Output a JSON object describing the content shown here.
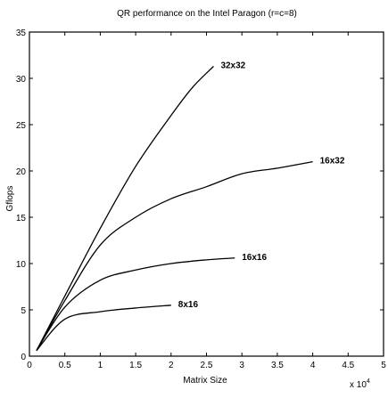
{
  "chart_data": {
    "type": "line",
    "title": "QR performance on the Intel Paragon (r=c=8)",
    "xlabel": "Matrix Size",
    "ylabel": "Gflops",
    "x_exponent_label": "x 10",
    "x_exponent_power": "4",
    "xlim": [
      0,
      5
    ],
    "ylim": [
      0,
      35
    ],
    "x_ticks": [
      "0",
      "0.5",
      "1",
      "1.5",
      "2",
      "2.5",
      "3",
      "3.5",
      "4",
      "4.5",
      "5"
    ],
    "y_ticks": [
      "0",
      "5",
      "10",
      "15",
      "20",
      "25",
      "30",
      "35"
    ],
    "grid": false,
    "series": [
      {
        "name": "32x32",
        "color": "#000000",
        "x": [
          0.1,
          0.5,
          1.0,
          1.5,
          2.0,
          2.3,
          2.6
        ],
        "y": [
          0.6,
          6.5,
          13.8,
          20.5,
          26.0,
          29.0,
          31.3
        ]
      },
      {
        "name": "16x32",
        "color": "#000000",
        "x": [
          0.1,
          0.5,
          1.0,
          1.5,
          2.0,
          2.5,
          3.0,
          3.5,
          4.0
        ],
        "y": [
          0.6,
          6.0,
          12.0,
          15.0,
          17.0,
          18.3,
          19.7,
          20.3,
          21.0
        ]
      },
      {
        "name": "16x16",
        "color": "#000000",
        "x": [
          0.1,
          0.5,
          1.0,
          1.5,
          2.0,
          2.5,
          2.9
        ],
        "y": [
          0.6,
          5.3,
          8.2,
          9.3,
          10.0,
          10.4,
          10.6
        ]
      },
      {
        "name": "8x16",
        "color": "#000000",
        "x": [
          0.1,
          0.5,
          1.0,
          1.5,
          2.0
        ],
        "y": [
          0.6,
          4.0,
          4.8,
          5.2,
          5.5
        ]
      }
    ]
  }
}
